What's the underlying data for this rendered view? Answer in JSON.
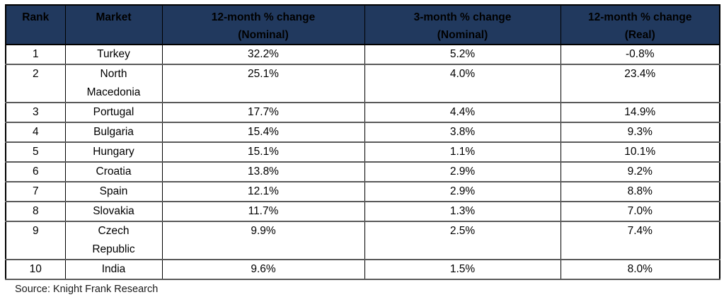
{
  "colors": {
    "header_bg": "#21395E",
    "header_text": "#000000",
    "body_text": "#000000",
    "grid_line": "#595959",
    "outer_border": "#000000"
  },
  "table": {
    "headers": [
      {
        "key": "rank",
        "line1": "Rank",
        "line2": ""
      },
      {
        "key": "market",
        "line1": "Market",
        "line2": ""
      },
      {
        "key": "change_12m_nominal",
        "line1": "12-month % change",
        "line2": "(Nominal)"
      },
      {
        "key": "change_3m_nominal",
        "line1": "3-month % change",
        "line2": "(Nominal)"
      },
      {
        "key": "change_12m_real",
        "line1": "12-month % change",
        "line2": "(Real)"
      }
    ],
    "rows": [
      {
        "rank": "1",
        "market": "Turkey",
        "change_12m_nominal": "32.2%",
        "change_3m_nominal": "5.2%",
        "change_12m_real": "-0.8%"
      },
      {
        "rank": "2",
        "market": "North Macedonia",
        "change_12m_nominal": "25.1%",
        "change_3m_nominal": "4.0%",
        "change_12m_real": "23.4%"
      },
      {
        "rank": "3",
        "market": "Portugal",
        "change_12m_nominal": "17.7%",
        "change_3m_nominal": "4.4%",
        "change_12m_real": "14.9%"
      },
      {
        "rank": "4",
        "market": "Bulgaria",
        "change_12m_nominal": "15.4%",
        "change_3m_nominal": "3.8%",
        "change_12m_real": "9.3%"
      },
      {
        "rank": "5",
        "market": "Hungary",
        "change_12m_nominal": "15.1%",
        "change_3m_nominal": "1.1%",
        "change_12m_real": "10.1%"
      },
      {
        "rank": "6",
        "market": "Croatia",
        "change_12m_nominal": "13.8%",
        "change_3m_nominal": "2.9%",
        "change_12m_real": "9.2%"
      },
      {
        "rank": "7",
        "market": "Spain",
        "change_12m_nominal": "12.1%",
        "change_3m_nominal": "2.9%",
        "change_12m_real": "8.8%"
      },
      {
        "rank": "8",
        "market": "Slovakia",
        "change_12m_nominal": "11.7%",
        "change_3m_nominal": "1.3%",
        "change_12m_real": "7.0%"
      },
      {
        "rank": "9",
        "market": "Czech Republic",
        "change_12m_nominal": "9.9%",
        "change_3m_nominal": "2.5%",
        "change_12m_real": "7.4%"
      },
      {
        "rank": "10",
        "market": "India",
        "change_12m_nominal": "9.6%",
        "change_3m_nominal": "1.5%",
        "change_12m_real": "8.0%"
      }
    ]
  },
  "source_note": "Source: Knight Frank Research",
  "chart_data": {
    "type": "table",
    "columns": [
      "Rank",
      "Market",
      "12-month % change (Nominal)",
      "3-month % change (Nominal)",
      "12-month % change (Real)"
    ],
    "rows": [
      [
        1,
        "Turkey",
        32.2,
        5.2,
        -0.8
      ],
      [
        2,
        "North Macedonia",
        25.1,
        4.0,
        23.4
      ],
      [
        3,
        "Portugal",
        17.7,
        4.4,
        14.9
      ],
      [
        4,
        "Bulgaria",
        15.4,
        3.8,
        9.3
      ],
      [
        5,
        "Hungary",
        15.1,
        1.1,
        10.1
      ],
      [
        6,
        "Croatia",
        13.8,
        2.9,
        9.2
      ],
      [
        7,
        "Spain",
        12.1,
        2.9,
        8.8
      ],
      [
        8,
        "Slovakia",
        11.7,
        1.3,
        7.0
      ],
      [
        9,
        "Czech Republic",
        9.9,
        2.5,
        7.4
      ],
      [
        10,
        "India",
        9.6,
        1.5,
        8.0
      ]
    ],
    "units": "percent",
    "source": "Source: Knight Frank Research"
  }
}
